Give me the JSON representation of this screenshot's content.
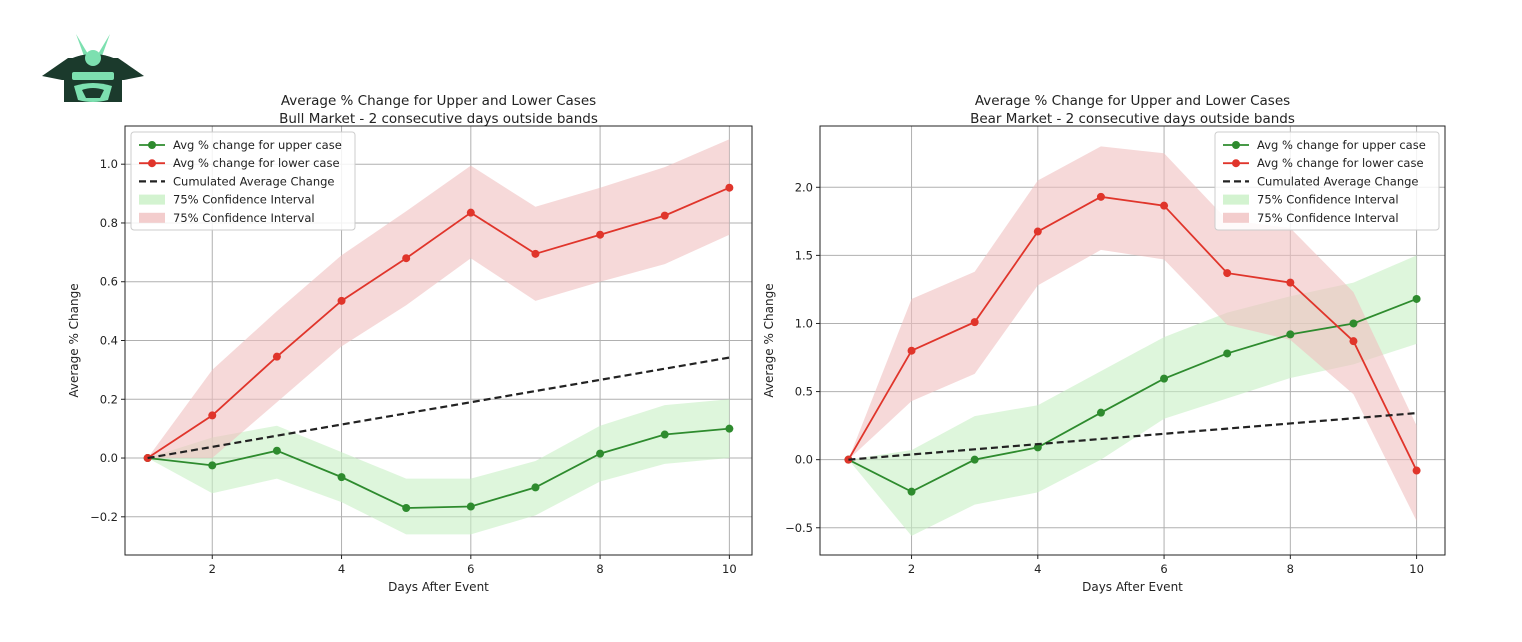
{
  "brand": {
    "logo_icon": "samurai-helmet-icon",
    "logo_colors": [
      "#1b3a2c",
      "#7de0b0"
    ]
  },
  "colors": {
    "upper": "#2e8b2e",
    "lower": "#e0352b",
    "cumulative": "#222222",
    "ci_upper": "#c8f0c4",
    "ci_lower": "#f0c0c0"
  },
  "chart_data": [
    {
      "type": "line",
      "title": "Average % Change for Upper and Lower Cases",
      "subtitle": "Bull Market - 2 consecutive days outside bands",
      "xlabel": "Days After Event",
      "ylabel": "Average % Change",
      "xlim": [
        0.65,
        10.35
      ],
      "ylim": [
        -0.33,
        1.13
      ],
      "xticks": [
        2,
        4,
        6,
        8,
        10
      ],
      "yticks": [
        -0.2,
        0.0,
        0.2,
        0.4,
        0.6,
        0.8,
        1.0
      ],
      "ytick_labels": [
        "−0.2",
        "0.0",
        "0.2",
        "0.4",
        "0.6",
        "0.8",
        "1.0"
      ],
      "grid": true,
      "legend_position": "top-left",
      "x": [
        1,
        2,
        3,
        4,
        5,
        6,
        7,
        8,
        9,
        10
      ],
      "series": [
        {
          "name": "Avg % change for upper case",
          "style": "line-marker",
          "color": "#2e8b2e",
          "values": [
            0.0,
            -0.025,
            0.025,
            -0.065,
            -0.17,
            -0.165,
            -0.1,
            0.015,
            0.08,
            0.1
          ]
        },
        {
          "name": "Avg % change for lower case",
          "style": "line-marker",
          "color": "#e0352b",
          "values": [
            0.0,
            0.145,
            0.345,
            0.535,
            0.68,
            0.835,
            0.695,
            0.76,
            0.825,
            0.92
          ]
        },
        {
          "name": "Cumulated Average Change",
          "style": "dashed",
          "color": "#222222",
          "values": [
            0.0,
            0.038,
            0.076,
            0.114,
            0.152,
            0.19,
            0.228,
            0.266,
            0.304,
            0.342
          ]
        },
        {
          "name": "75% Confidence Interval",
          "style": "band",
          "color": "#c8f0c4",
          "lower": [
            0.0,
            -0.12,
            -0.07,
            -0.15,
            -0.26,
            -0.26,
            -0.195,
            -0.08,
            -0.02,
            0.0
          ],
          "upper": [
            0.0,
            0.07,
            0.11,
            0.02,
            -0.07,
            -0.07,
            -0.01,
            0.11,
            0.18,
            0.2
          ]
        },
        {
          "name": "75% Confidence Interval",
          "style": "band",
          "color": "#f0c0c0",
          "lower": [
            0.0,
            0.0,
            0.19,
            0.38,
            0.52,
            0.68,
            0.535,
            0.6,
            0.66,
            0.76
          ],
          "upper": [
            0.0,
            0.3,
            0.5,
            0.69,
            0.84,
            0.995,
            0.855,
            0.92,
            0.99,
            1.085
          ]
        }
      ]
    },
    {
      "type": "line",
      "title": "Average % Change for Upper and Lower Cases",
      "subtitle": "Bear Market - 2 consecutive days outside bands",
      "xlabel": "Days After Event",
      "ylabel": "Average % Change",
      "xlim": [
        0.55,
        10.45
      ],
      "ylim": [
        -0.7,
        2.45
      ],
      "xticks": [
        2,
        4,
        6,
        8,
        10
      ],
      "yticks": [
        -0.5,
        0.0,
        0.5,
        1.0,
        1.5,
        2.0
      ],
      "ytick_labels": [
        "−0.5",
        "0.0",
        "0.5",
        "1.0",
        "1.5",
        "2.0"
      ],
      "grid": true,
      "legend_position": "top-right",
      "x": [
        1,
        2,
        3,
        4,
        5,
        6,
        7,
        8,
        9,
        10
      ],
      "series": [
        {
          "name": "Avg % change for upper case",
          "style": "line-marker",
          "color": "#2e8b2e",
          "values": [
            0.0,
            -0.235,
            0.0,
            0.09,
            0.345,
            0.595,
            0.78,
            0.92,
            1.0,
            1.18
          ]
        },
        {
          "name": "Avg % change for lower case",
          "style": "line-marker",
          "color": "#e0352b",
          "values": [
            0.0,
            0.8,
            1.01,
            1.675,
            1.93,
            1.865,
            1.37,
            1.3,
            0.87,
            -0.08
          ]
        },
        {
          "name": "Cumulated Average Change",
          "style": "dashed",
          "color": "#222222",
          "values": [
            0.0,
            0.038,
            0.076,
            0.114,
            0.152,
            0.19,
            0.228,
            0.266,
            0.304,
            0.342
          ]
        },
        {
          "name": "75% Confidence Interval",
          "style": "band",
          "color": "#c8f0c4",
          "lower": [
            0.0,
            -0.56,
            -0.33,
            -0.24,
            0.0,
            0.3,
            0.45,
            0.6,
            0.7,
            0.85
          ],
          "upper": [
            0.0,
            0.07,
            0.32,
            0.4,
            0.65,
            0.9,
            1.08,
            1.2,
            1.3,
            1.5
          ]
        },
        {
          "name": "75% Confidence Interval",
          "style": "band",
          "color": "#f0c0c0",
          "lower": [
            0.0,
            0.43,
            0.63,
            1.28,
            1.54,
            1.47,
            0.99,
            0.88,
            0.48,
            -0.45
          ]
        },
        {
          "name": "",
          "style": "band-upper-ref",
          "color": "#f0c0c0",
          "upper": [
            0.0,
            1.18,
            1.38,
            2.05,
            2.3,
            2.25,
            1.76,
            1.7,
            1.23,
            0.25
          ]
        }
      ]
    }
  ]
}
